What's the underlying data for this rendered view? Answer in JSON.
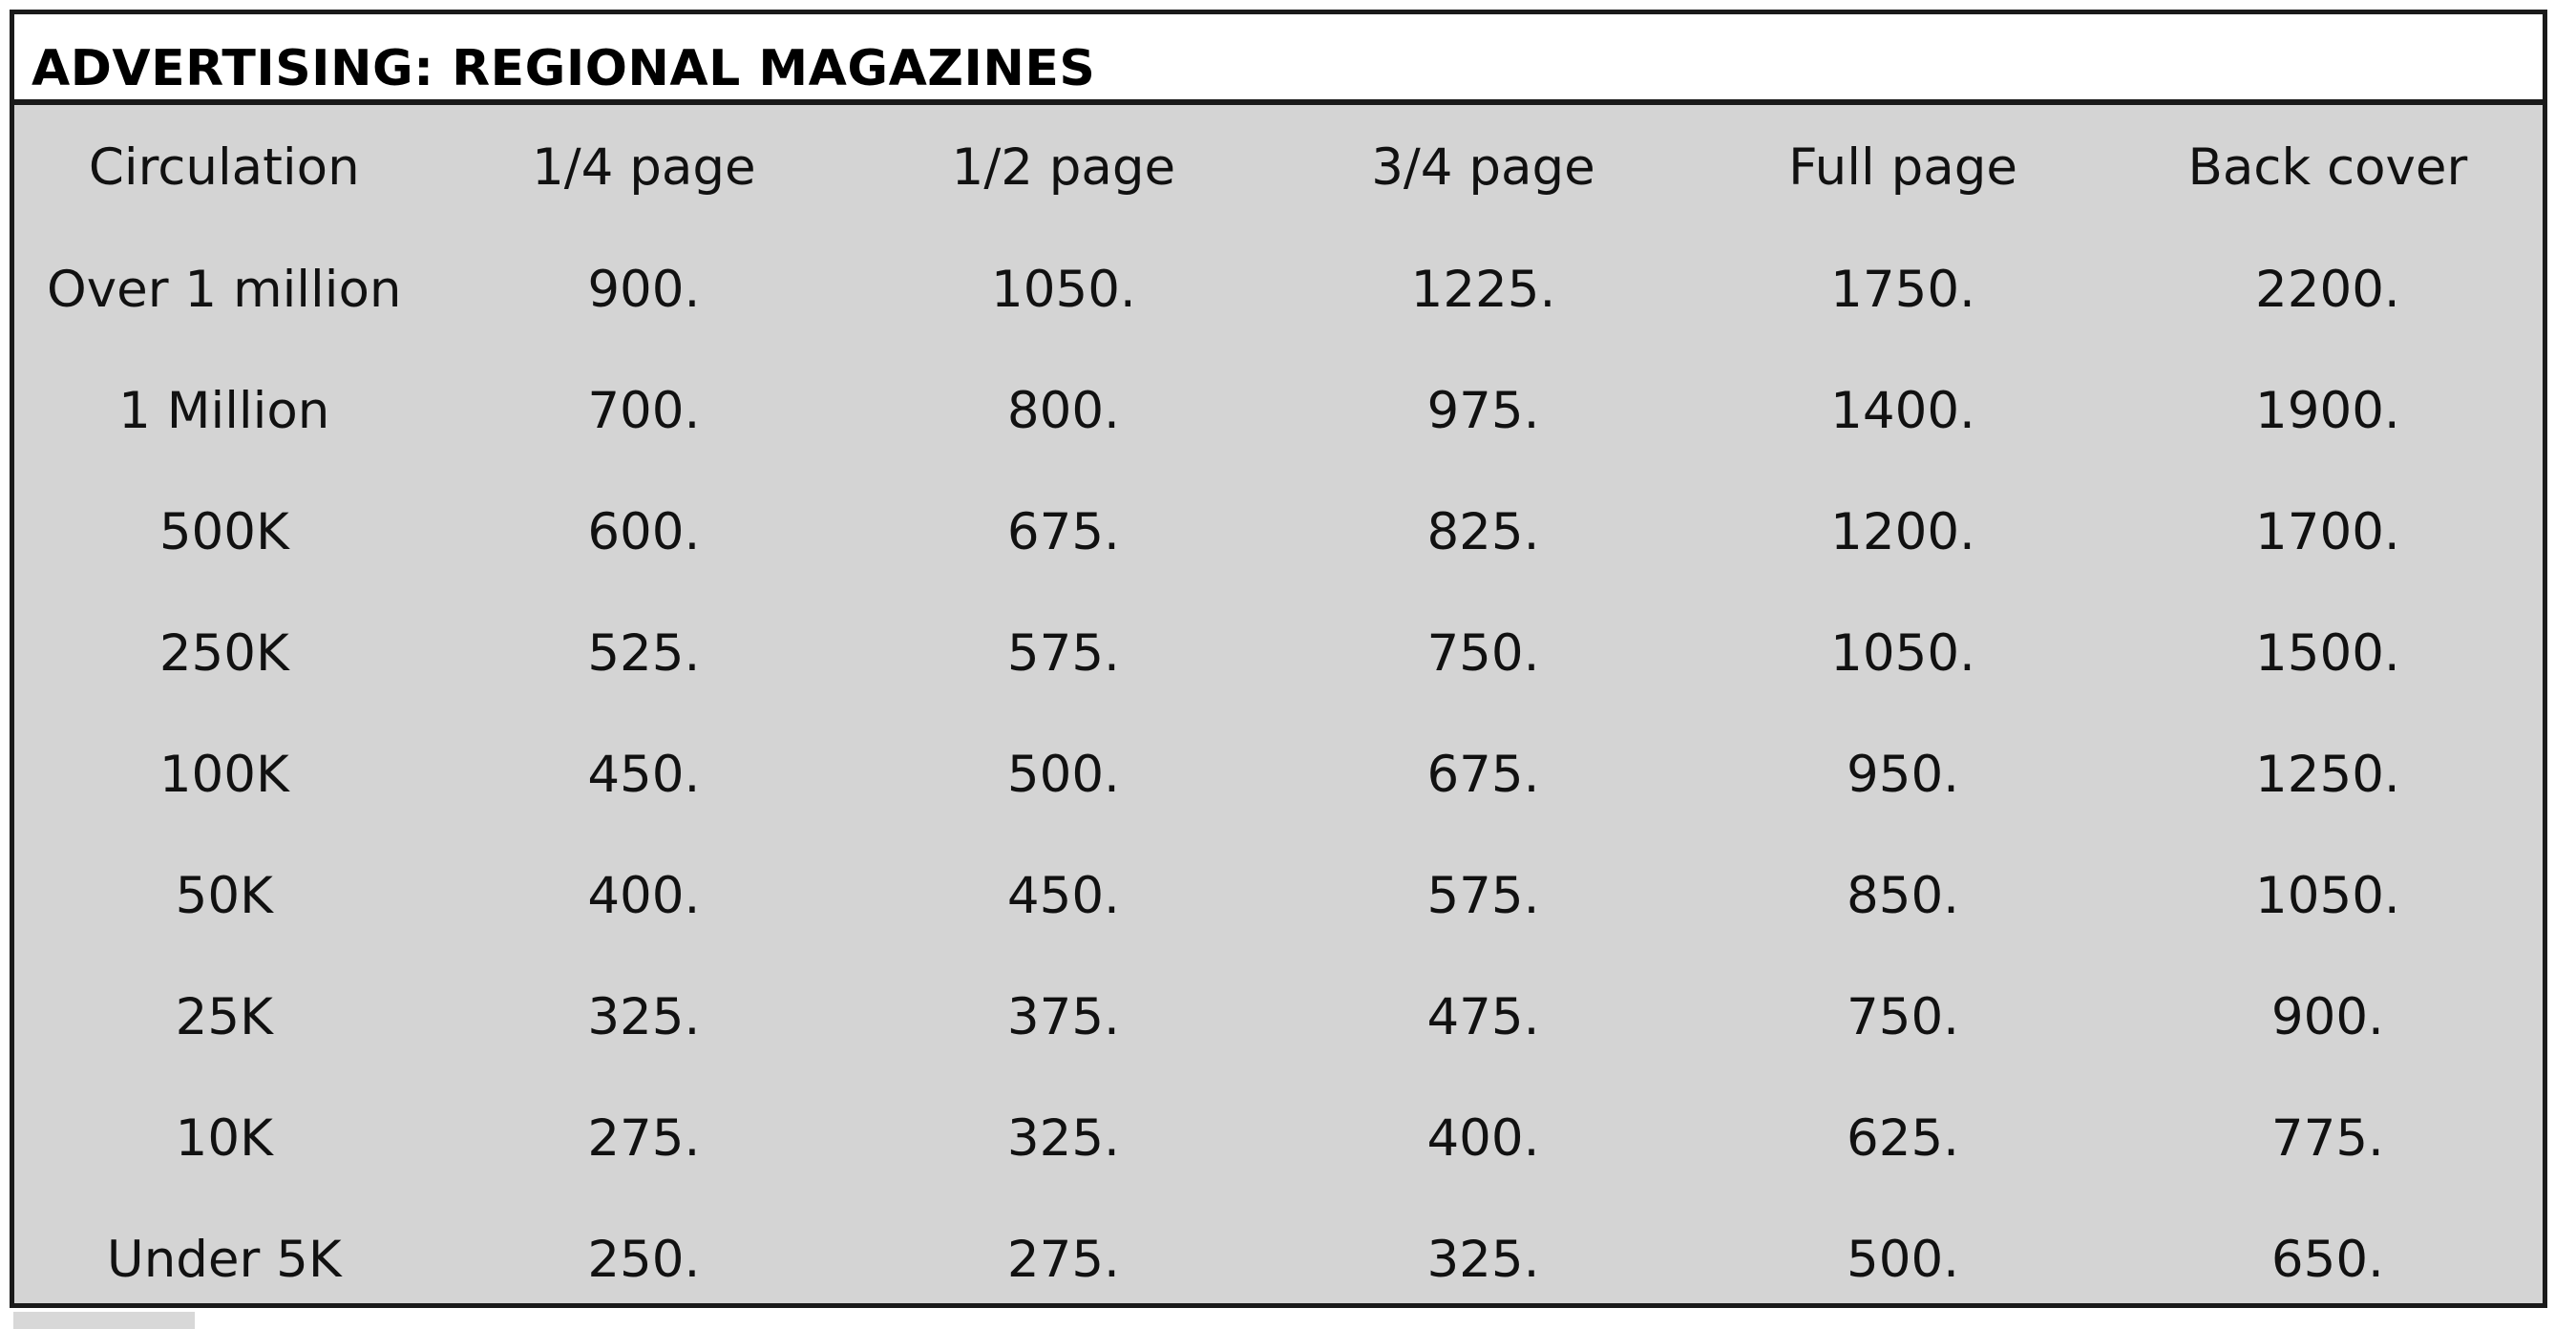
{
  "title": "ADVERTISING: REGIONAL MAGAZINES",
  "columns": [
    "Circulation",
    "1/4 page",
    "1/2 page",
    "3/4 page",
    "Full page",
    "Back cover"
  ],
  "rows": [
    [
      "Over 1 million",
      "900.",
      "1050.",
      "1225.",
      "1750.",
      "2200."
    ],
    [
      "1 Million",
      "700.",
      "800.",
      "975.",
      "1400.",
      "1900."
    ],
    [
      "500K",
      "600.",
      "675.",
      "825.",
      "1200.",
      "1700."
    ],
    [
      "250K",
      "525.",
      "575.",
      "750.",
      "1050.",
      "1500."
    ],
    [
      "100K",
      "450.",
      "500.",
      "675.",
      "950.",
      "1250."
    ],
    [
      "50K",
      "400.",
      "450.",
      "575.",
      "850.",
      "1050."
    ],
    [
      "25K",
      "325.",
      "375.",
      "475.",
      "750.",
      "900."
    ],
    [
      "10K",
      "275.",
      "325.",
      "400.",
      "625.",
      "775."
    ],
    [
      "Under 5K",
      "250.",
      "275.",
      "325.",
      "500.",
      "650."
    ]
  ],
  "colors": {
    "panel_background": "#d4d4d4",
    "title_background": "#ffffff",
    "border": "#1a1a1a",
    "text": "#111111"
  }
}
